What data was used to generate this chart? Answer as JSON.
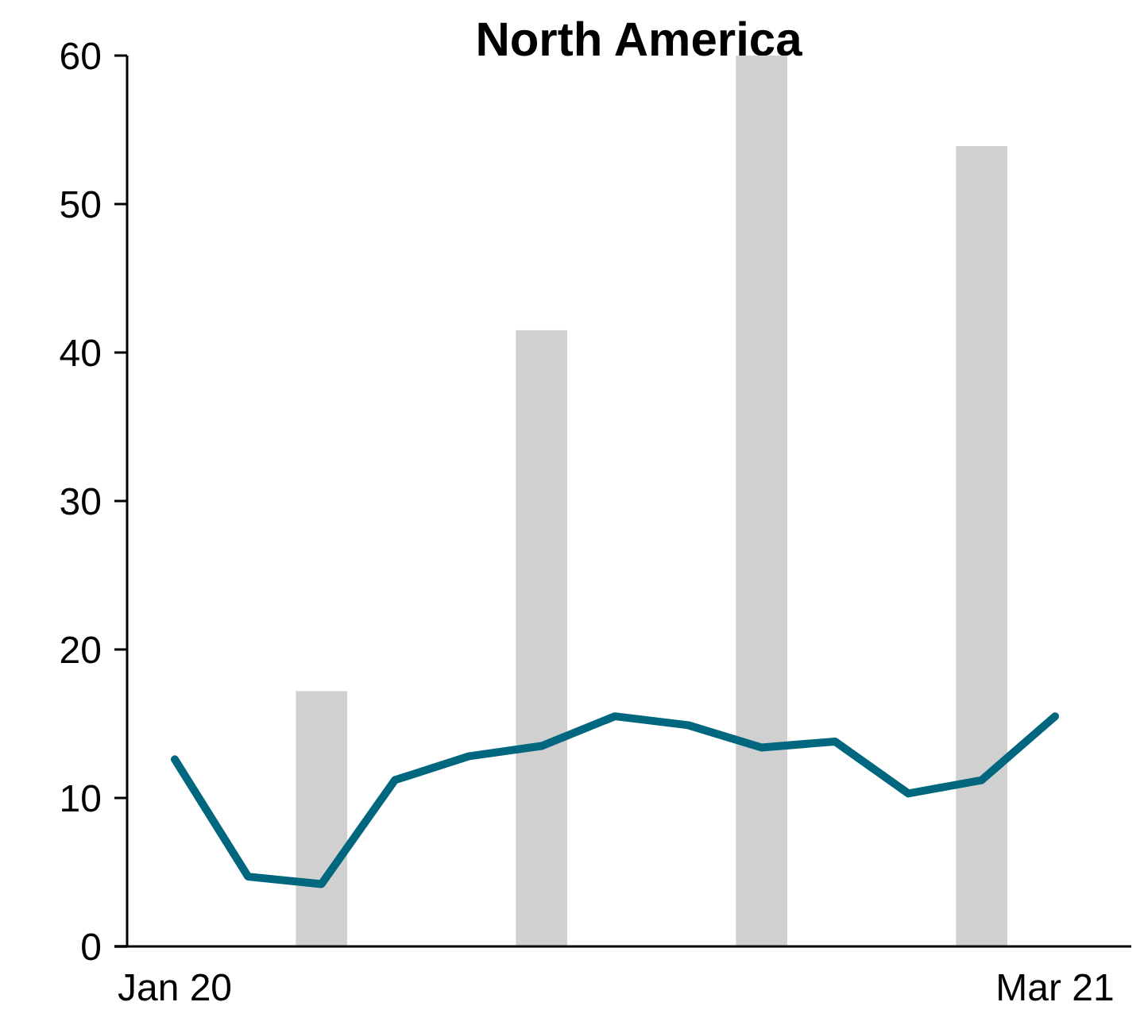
{
  "chart_data": {
    "type": "bar",
    "title": "North America",
    "categories": [
      "Jan 20",
      null,
      null,
      null,
      null,
      null,
      null,
      null,
      null,
      null,
      null,
      null,
      "Mar 21"
    ],
    "series": [
      {
        "color": "#d0d0d0",
        "values": [
          null,
          null,
          17.2,
          null,
          null,
          41.5,
          null,
          null,
          60,
          null,
          null,
          53.9,
          null
        ]
      },
      {
        "type": "line",
        "color": "#00677f",
        "values": [
          12.6,
          4.7,
          4.2,
          11.2,
          12.8,
          13.5,
          15.5,
          14.9,
          13.4,
          13.8,
          10.3,
          11.2,
          15.5
        ]
      }
    ],
    "ylim": [
      0,
      60
    ],
    "yticks": [
      0,
      10,
      20,
      30,
      40,
      50,
      60
    ],
    "grid": false
  }
}
